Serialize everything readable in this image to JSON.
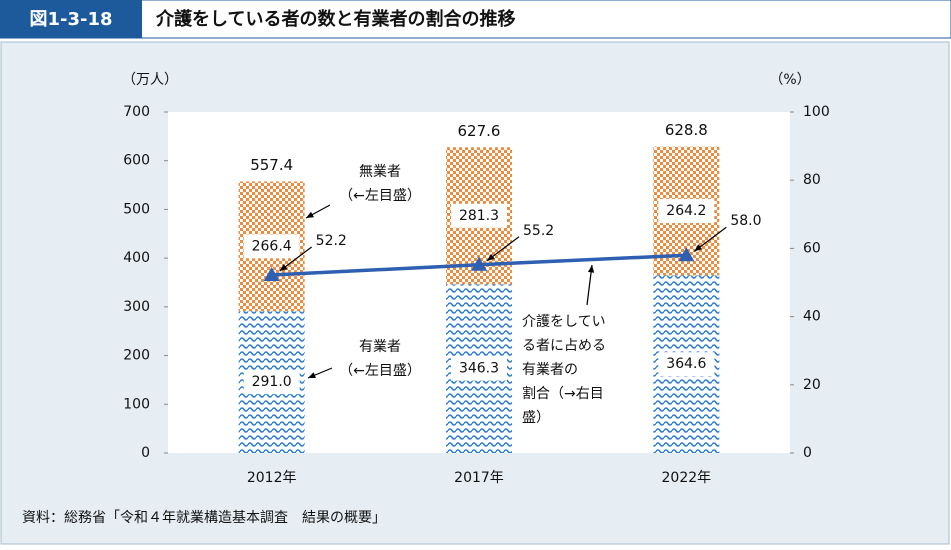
{
  "figure_label": "図1-3-18",
  "title": "介護をしている者の数と有業者の割合の推移",
  "source": "資料：総務省「令和４年就業構造基本調査　結果の概要」",
  "chart_data": {
    "type": "bar",
    "stacked": true,
    "categories": [
      "2012年",
      "2017年",
      "2022年"
    ],
    "y_label": "（万人）",
    "y2_label": "（%）",
    "ylim": [
      0,
      700
    ],
    "yticks": [
      0,
      100,
      200,
      300,
      400,
      500,
      600,
      700
    ],
    "y2lim": [
      0,
      100
    ],
    "y2ticks": [
      0,
      20,
      40,
      60,
      80,
      100
    ],
    "totals": [
      557.4,
      627.6,
      628.8
    ],
    "series": [
      {
        "name": "有業者（←左目盛）",
        "color": "#2f7fd0",
        "values": [
          291.0,
          346.3,
          364.6
        ],
        "value_labels": [
          "291.0",
          "346.3",
          "364.6"
        ]
      },
      {
        "name": "無業者（←左目盛）",
        "color": "#f08a3c",
        "values": [
          266.4,
          281.3,
          264.2
        ]
      },
      {
        "name": "介護をしている者に占める有業者の割合（→右目盛）",
        "type": "line",
        "axis": "y2",
        "color": "#2e5fb0",
        "values": [
          52.2,
          55.2,
          58.0
        ],
        "value_labels": [
          "52.2",
          "55.2",
          "58.0"
        ]
      }
    ]
  }
}
